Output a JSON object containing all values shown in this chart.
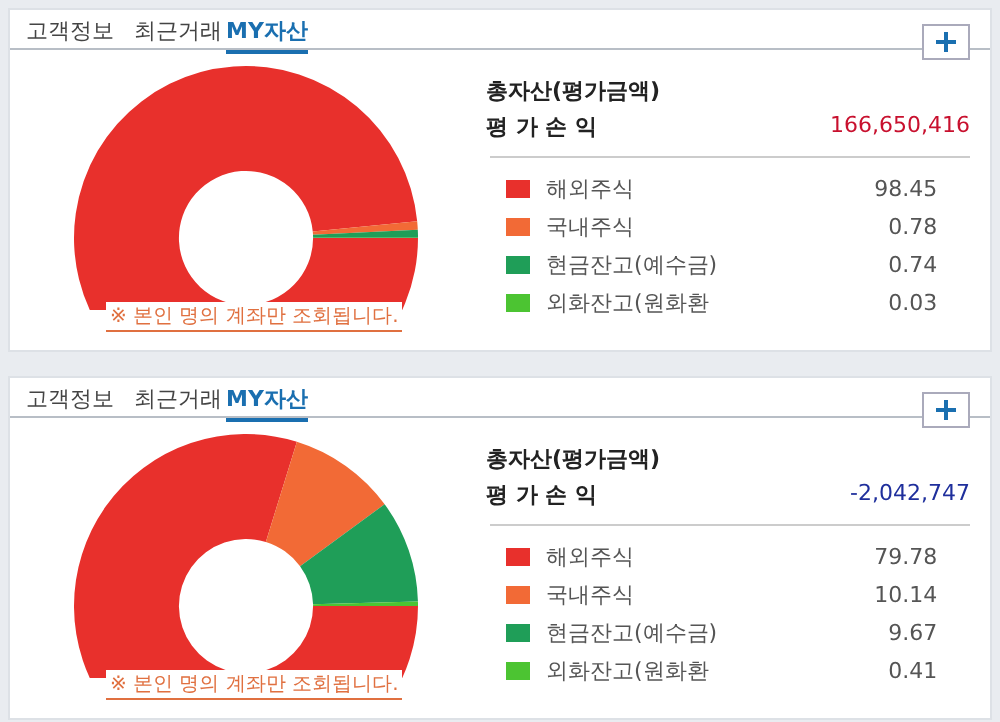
{
  "chart_data": [
    {
      "type": "donut",
      "categories": [
        "해외주식",
        "국내주식",
        "현금잔고(예수금)",
        "외화잔고(원화환"
      ],
      "values": [
        98.45,
        0.78,
        0.74,
        0.03
      ],
      "colors": [
        "#e8302c",
        "#f26a36",
        "#1f9e58",
        "#4cc432"
      ],
      "data_labels": true,
      "legend": "right",
      "annotations": [
        "고객정보",
        "최근거래",
        "MY자산",
        "총자산(평가금액)",
        "평 가 손 익",
        "166,650,416",
        "※ 본인 명의 계좌만 조회됩니다."
      ]
    },
    {
      "type": "donut",
      "categories": [
        "해외주식",
        "국내주식",
        "현금잔고(예수금)",
        "외화잔고(원화환"
      ],
      "values": [
        79.78,
        10.14,
        9.67,
        0.41
      ],
      "colors": [
        "#e8302c",
        "#f26a36",
        "#1f9e58",
        "#4cc432"
      ],
      "data_labels": true,
      "legend": "right",
      "annotations": [
        "고객정보",
        "최근거래",
        "MY자산",
        "총자산(평가금액)",
        "평 가 손 익",
        "-2,042,747",
        "※ 본인 명의 계좌만 조회됩니다."
      ]
    }
  ]
}
